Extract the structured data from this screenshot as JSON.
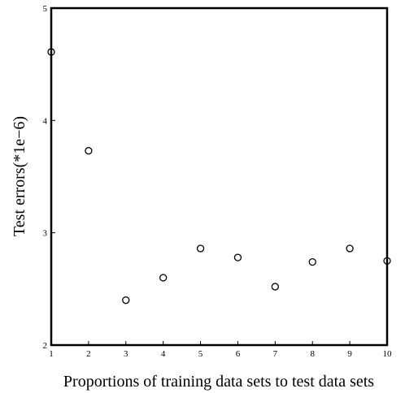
{
  "chart_data": {
    "type": "scatter",
    "title": "",
    "xlabel": "Proportions of training data sets to test data sets",
    "ylabel": "Test errors(*1e−6)",
    "xlim": [
      1,
      10
    ],
    "ylim": [
      2,
      5
    ],
    "xticks": [
      "1",
      "2",
      "3",
      "4",
      "5",
      "6",
      "7",
      "8",
      "9",
      "10"
    ],
    "yticks": [
      "2",
      "3",
      "4",
      "5"
    ],
    "grid": false,
    "legend": "none",
    "marker": "open-circle",
    "points": [
      {
        "x": 1,
        "y": 4.61
      },
      {
        "x": 2,
        "y": 3.73
      },
      {
        "x": 3,
        "y": 2.4
      },
      {
        "x": 4,
        "y": 2.6
      },
      {
        "x": 5,
        "y": 2.86
      },
      {
        "x": 6,
        "y": 2.78
      },
      {
        "x": 7,
        "y": 2.52
      },
      {
        "x": 8,
        "y": 2.74
      },
      {
        "x": 9,
        "y": 2.86
      },
      {
        "x": 10,
        "y": 2.75
      }
    ]
  }
}
